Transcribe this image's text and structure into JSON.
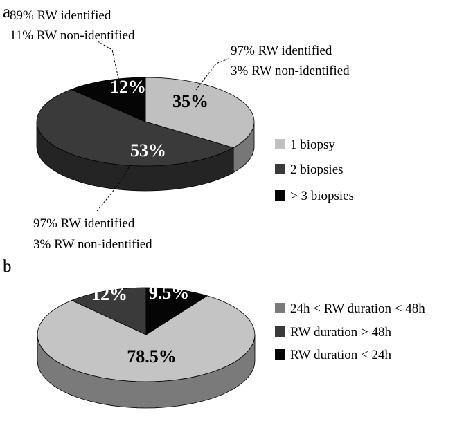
{
  "chart_data": [
    {
      "type": "pie",
      "panel": "a",
      "categories": [
        "1 biopsy",
        "2 biopsies",
        "> 3 biopsies"
      ],
      "values": [
        35,
        53,
        12
      ],
      "value_labels": [
        "35%",
        "53%",
        "12%"
      ],
      "colors": [
        "#c0c0c0",
        "#3a3a3a",
        "#050505"
      ],
      "label_colors": [
        "#000000",
        "#ffffff",
        "#ffffff"
      ],
      "legend": {
        "placement": "right",
        "entries": [
          "1 biopsy",
          "2 biopsies",
          "> 3 biopsies"
        ]
      },
      "annotations": [
        {
          "slice": "> 3 biopsies",
          "lines": [
            "89% RW identified",
            "11% RW non-identified"
          ]
        },
        {
          "slice": "1 biopsy",
          "lines": [
            "97% RW identified",
            "3% RW non-identified"
          ]
        },
        {
          "slice": "2 biopsies",
          "lines": [
            "97% RW identified",
            "3% RW non-identified"
          ]
        }
      ]
    },
    {
      "type": "pie",
      "panel": "b",
      "categories": [
        "24h < RW duration < 48h",
        "RW duration > 48h",
        "RW duration < 24h"
      ],
      "values": [
        78.5,
        12,
        9.5
      ],
      "value_labels": [
        "78.5%",
        "12%",
        "9.5%"
      ],
      "colors": [
        "#c4c4c4",
        "#3a3a3a",
        "#050505"
      ],
      "label_colors": [
        "#000000",
        "#ffffff",
        "#ffffff"
      ],
      "legend": {
        "placement": "right",
        "entries": [
          "24h < RW duration < 48h",
          "RW duration > 48h",
          "RW duration < 24h"
        ]
      }
    }
  ]
}
